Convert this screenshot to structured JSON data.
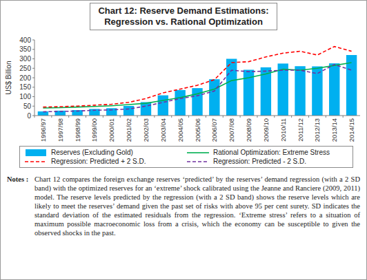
{
  "chart_data": {
    "type": "bar",
    "title": "Chart 12: Reserve Demand Estimations: Regression vs. Rational Optimization",
    "y_label": "US$ Billion",
    "categories": [
      "1996/97",
      "1997/98",
      "1998/99",
      "1999/00",
      "2000/01",
      "2001/02",
      "2002/03",
      "2003/04",
      "2004/05",
      "2005/06",
      "2006/07",
      "2007/08",
      "2008/09",
      "2009/10",
      "2010/11",
      "2011/12",
      "2012/13",
      "2013/14",
      "2014/15"
    ],
    "series": [
      {
        "name": "Reserves (Excluding Gold)",
        "type": "bar",
        "color": "#00b0f0",
        "values": [
          22,
          26,
          29,
          35,
          39,
          51,
          71,
          107,
          135,
          145,
          192,
          300,
          242,
          255,
          275,
          261,
          260,
          276,
          320
        ]
      },
      {
        "name": "Rational Optimization: Extreme Stress",
        "type": "line",
        "color": "#00b050",
        "line_style": "solid",
        "values": [
          40,
          42,
          45,
          48,
          52,
          58,
          65,
          80,
          95,
          115,
          140,
          185,
          200,
          220,
          245,
          240,
          250,
          265,
          280
        ]
      },
      {
        "name": "Regression: Predicted + 2 S.D.",
        "type": "line",
        "color": "#ff0000",
        "line_style": "dashed",
        "values": [
          45,
          47,
          50,
          55,
          60,
          70,
          90,
          120,
          140,
          160,
          190,
          280,
          285,
          310,
          330,
          340,
          320,
          365,
          340
        ]
      },
      {
        "name": "Regression: Predicted - 2 S.D.",
        "type": "line",
        "color": "#7030a0",
        "line_style": "dashed",
        "values": [
          20,
          22,
          24,
          28,
          30,
          35,
          50,
          70,
          90,
          105,
          130,
          240,
          232,
          235,
          240,
          240,
          222,
          270,
          240
        ]
      }
    ],
    "ylim": [
      0,
      400
    ],
    "yticks": [
      0,
      50,
      100,
      150,
      200,
      250,
      300,
      350,
      400
    ],
    "grid": false,
    "legend": "bottom",
    "notes_label": "Notes :",
    "notes": "Chart 12 compares the foreign exchange reserves ‘predicted’ by the reserves’ demand regression (with a 2 SD band) with the optimized reserves for an ‘extreme’ shock calibrated using the Jeanne and Ranciere (2009, 2011) model. The reserve levels predicted by the regression (with a 2 SD band) shows the reserve levels which are likely to meet the reserves’ demand given the past set of risks with above 95 per cent surety. SD indicates the standard deviation of the estimated residuals from the regression. ‘Extreme stress’ refers to a situation of maximum possible macroeconomic loss from a crisis, which the economy can be susceptible to given the observed shocks in the past."
  }
}
